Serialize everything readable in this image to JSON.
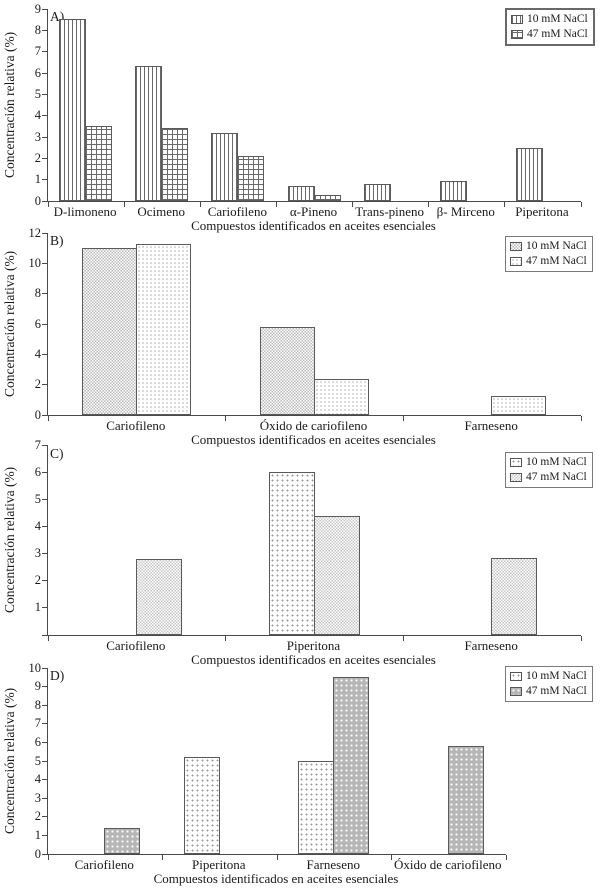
{
  "figure": {
    "description": "Four stacked grouped bar charts A)-D) of relative concentration of essential-oil compounds under two NaCl treatments",
    "colors": {
      "background": "#ffffff",
      "text": "#1a1a1a",
      "axis": "#4a4a4a",
      "bar_border": "#5a5a5a",
      "hatch_dark": "#6a6a6a",
      "hatch_gray": "#bdbdbd",
      "solid_gray": "#b6b6b6",
      "legend_border": "#7a7a7a"
    }
  },
  "chart_data": [
    {
      "type": "bar",
      "panel": "A)",
      "ylabel": "Concentración relativa (%)",
      "xlabel": "Compuestos identificados en aceites esenciales",
      "ylim": [
        0,
        9
      ],
      "yticks": [
        0,
        1,
        2,
        3,
        4,
        5,
        6,
        7,
        8,
        9
      ],
      "grid": false,
      "legend_position": "top-right",
      "categories": [
        "D-limoneno",
        "Ocimeno",
        "Cariofileno",
        "α-Pineno",
        "Trans-pineno",
        "β- Mirceno",
        "Piperitona"
      ],
      "series": [
        {
          "name": "10 mM NaCl",
          "pattern": "vlines",
          "values": [
            8.55,
            6.35,
            3.2,
            0.7,
            0.8,
            0.95,
            2.5
          ]
        },
        {
          "name": "47 mM NaCl",
          "pattern": "grid",
          "values": [
            3.5,
            3.4,
            2.1,
            0.3,
            0,
            0,
            0
          ]
        }
      ]
    },
    {
      "type": "bar",
      "panel": "B)",
      "ylabel": "Concentración relativa (%)",
      "xlabel": "Compuestos identificados en aceites esenciales",
      "ylim": [
        0,
        12
      ],
      "yticks": [
        0,
        2,
        4,
        6,
        8,
        10,
        12
      ],
      "grid": false,
      "legend_position": "top-right",
      "categories": [
        "Cariofileno",
        "Óxido de cariofileno",
        "Farneseno"
      ],
      "series": [
        {
          "name": "10 mM NaCl",
          "pattern": "checker-dense",
          "values": [
            11.0,
            5.8,
            0
          ]
        },
        {
          "name": "47 mM NaCl",
          "pattern": "diamond-light",
          "values": [
            11.25,
            2.4,
            1.25
          ]
        }
      ]
    },
    {
      "type": "bar",
      "panel": "C)",
      "ylabel": "Concentración relativa (%)",
      "xlabel": "Compuestos identificados en aceites esenciales",
      "ylim": [
        0,
        7
      ],
      "yticks": [
        1,
        2,
        3,
        4,
        5,
        6,
        7
      ],
      "grid": false,
      "legend_position": "top-right",
      "categories": [
        "Cariofileno",
        "Piperitona",
        "Farneseno"
      ],
      "series": [
        {
          "name": "10 mM NaCl",
          "pattern": "dots-light",
          "values": [
            0,
            6.0,
            0
          ]
        },
        {
          "name": "47 mM NaCl",
          "pattern": "checker-light",
          "values": [
            2.8,
            4.4,
            2.85
          ]
        }
      ]
    },
    {
      "type": "bar",
      "panel": "D)",
      "ylabel": "Concentración relativa (%)",
      "xlabel": "Compuestos identificados en aceites esenciales",
      "ylim": [
        0,
        10
      ],
      "yticks": [
        0,
        1,
        2,
        3,
        4,
        5,
        6,
        7,
        8,
        9,
        10
      ],
      "grid": false,
      "legend_position": "top-right",
      "categories": [
        "Cariofileno",
        "Piperitona",
        "Farneseno",
        "Óxido de cariofileno"
      ],
      "series": [
        {
          "name": "10 mM NaCl",
          "pattern": "dots-light",
          "values": [
            0,
            5.2,
            5.0,
            0
          ]
        },
        {
          "name": "47 mM NaCl",
          "pattern": "gray-white-dots",
          "values": [
            1.4,
            0,
            9.5,
            5.8
          ]
        }
      ]
    }
  ]
}
